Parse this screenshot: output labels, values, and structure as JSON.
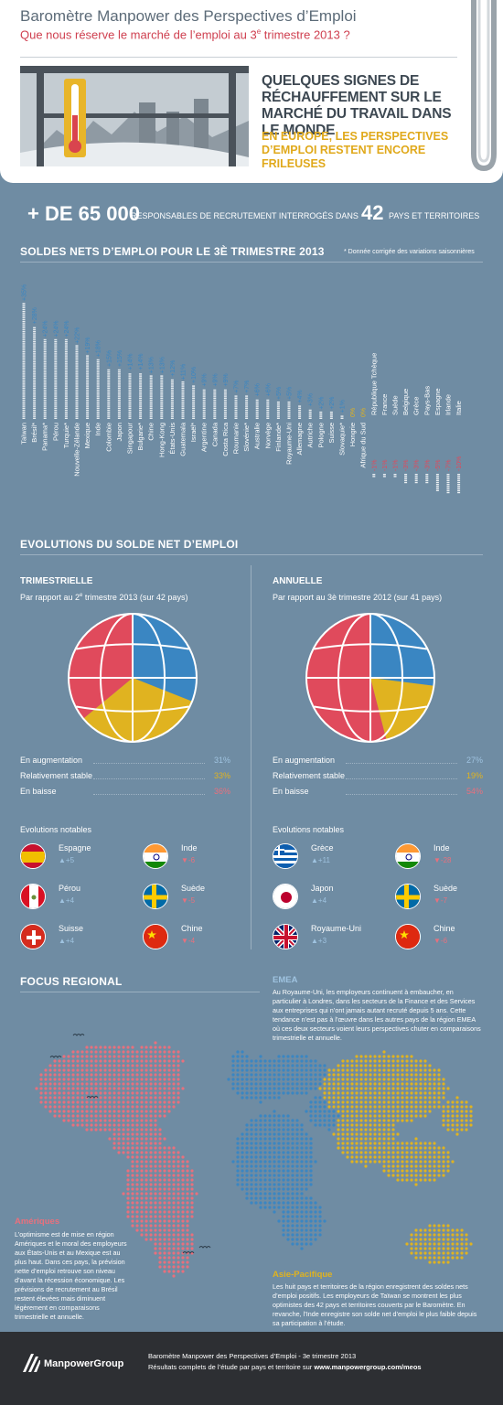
{
  "header": {
    "title": "Baromètre Manpower des Perspectives d’Emploi",
    "subtitle_pre": "Que nous réserve le marché de l’emploi au 3",
    "subtitle_sup": "e",
    "subtitle_post": " trimestre 2013 ?",
    "headline": "QUELQUES SIGNES DE RÉCHAUFFEMENT SUR LE MARCHÉ DU TRAVAIL DANS LE MONDE",
    "subhead": "EN EUROPE, LES PERSPECTIVES D’EMPLOI RESTENT ENCORE FRILEUSES"
  },
  "stats": {
    "big1": "+ DE 65 000",
    "text1": "RESPONSABLES DE RECRUTEMENT INTERROGÉS DANS",
    "big2": "42",
    "text2": "PAYS ET TERRITOIRES"
  },
  "chart_section": {
    "title": "SOLDES NETS D’EMPLOI POUR LE 3È TRIMESTRE 2013",
    "note": "* Donnée corrigée des variations saisonnières"
  },
  "chart_data": {
    "type": "bar",
    "categories": [
      "Taïwan",
      "Brésil*",
      "Panama*",
      "Pérou",
      "Turquie*",
      "Nouvelle-Zélande",
      "Mexique",
      "Inde",
      "Colombie",
      "Japon",
      "Singapour",
      "Bulgarie*",
      "Chine",
      "Hong-Kong",
      "États-Unis",
      "Guatemala",
      "Israël*",
      "Argentine",
      "Canada",
      "Costa Rica",
      "Roumanie",
      "Slovénie*",
      "Australie",
      "Norvège",
      "Finlande*",
      "Royaume-Uni",
      "Allemagne",
      "Autriche",
      "Pologne",
      "Suisse",
      "Slovaquie*",
      "Hongrie",
      "Afrique du Sud",
      "République Tchèque",
      "France",
      "Suède",
      "Belgique",
      "Grèce",
      "Pays-Bas",
      "Espagne",
      "Irlande",
      "Italie"
    ],
    "values": [
      35,
      28,
      24,
      24,
      24,
      22,
      19,
      18,
      15,
      15,
      14,
      14,
      13,
      13,
      12,
      11,
      10,
      9,
      9,
      9,
      7,
      7,
      6,
      6,
      5,
      5,
      4,
      3,
      2,
      2,
      1,
      0,
      0,
      -1,
      -1,
      -1,
      -3,
      -3,
      -3,
      -5,
      -7,
      -10
    ],
    "labels": [
      "+35%",
      "+28%",
      "+24%",
      "+24%",
      "+24%",
      "+22%",
      "+19%",
      "+18%",
      "+15%",
      "+15%",
      "+14%",
      "+14%",
      "+13%",
      "+13%",
      "+12%",
      "+11%",
      "+10%",
      "+9%",
      "+9%",
      "+9%",
      "+7%",
      "+7%",
      "+6%",
      "+6%",
      "+5%",
      "+5%",
      "+4%",
      "+3%",
      "+2%",
      "+2%",
      "+1%",
      "0%",
      "0%",
      "-1%",
      "-1%",
      "-1%",
      "-3%",
      "-3%",
      "-3%",
      "-5%",
      "-7%",
      "-10%"
    ],
    "colors": {
      "positive": "#3a86c2",
      "zero": "#e0b320",
      "negative": "#e04a5c"
    }
  },
  "evolutions": {
    "title": "EVOLUTIONS DU SOLDE NET D’EMPLOI",
    "legend_labels": [
      "En augmentation",
      "Relativement stable",
      "En baisse"
    ],
    "notable_title": "Evolutions notables",
    "quarterly": {
      "title": "TRIMESTRIELLE",
      "sub_pre": "Par rapport au 2",
      "sub_sup": "e",
      "sub_post": " trimestre 2013 (sur 42 pays)",
      "pie": {
        "up": 31,
        "stable": 33,
        "down": 36
      },
      "pct": [
        "31%",
        "33%",
        "36%"
      ],
      "notables": [
        {
          "name": "Espagne",
          "value": "▲+5",
          "dir": "up",
          "flag": "spain-flag-icon"
        },
        {
          "name": "Inde",
          "value": "▼-6",
          "dir": "down",
          "flag": "india-flag-icon"
        },
        {
          "name": "Pérou",
          "value": "▲+4",
          "dir": "up",
          "flag": "peru-flag-icon"
        },
        {
          "name": "Suède",
          "value": "▼-5",
          "dir": "down",
          "flag": "sweden-flag-icon"
        },
        {
          "name": "Suisse",
          "value": "▲+4",
          "dir": "up",
          "flag": "switzerland-flag-icon"
        },
        {
          "name": "Chine",
          "value": "▼-4",
          "dir": "down",
          "flag": "china-flag-icon"
        }
      ]
    },
    "annual": {
      "title": "ANNUELLE",
      "sub": "Par rapport au 3è trimestre 2012 (sur 41 pays)",
      "pie": {
        "up": 27,
        "stable": 19,
        "down": 54
      },
      "pct": [
        "27%",
        "19%",
        "54%"
      ],
      "notables": [
        {
          "name": "Grèce",
          "value": "▲+11",
          "dir": "up",
          "flag": "greece-flag-icon"
        },
        {
          "name": "Inde",
          "value": "▼-28",
          "dir": "down",
          "flag": "india-flag-icon"
        },
        {
          "name": "Japon",
          "value": "▲+4",
          "dir": "up",
          "flag": "japan-flag-icon"
        },
        {
          "name": "Suède",
          "value": "▼-7",
          "dir": "down",
          "flag": "sweden-flag-icon"
        },
        {
          "name": "Royaume-Uni",
          "value": "▲+3",
          "dir": "up",
          "flag": "uk-flag-icon"
        },
        {
          "name": "Chine",
          "value": "▼-6",
          "dir": "down",
          "flag": "china-flag-icon"
        }
      ]
    },
    "colors": {
      "up": "#3a86c2",
      "stable": "#e0b320",
      "down": "#e04a5c",
      "up_text": "#9fc3e0",
      "stable_text": "#e0b320",
      "down_text": "#e8707d"
    }
  },
  "regional": {
    "title": "FOCUS REGIONAL",
    "emea_title": "EMEA",
    "emea_text": "Au Royaume-Uni, les employeurs continuent à embaucher, en particulier à Londres, dans les secteurs de la Finance et des Services aux entreprises qui n’ont jamais autant recruté depuis 5 ans. Cette tendance n’est pas à l’œuvre dans les autres pays de la région EMEA où ces deux secteurs voient leurs perspectives chuter en comparaisons trimestrielle et annuelle.",
    "americas_title": "Amériques",
    "americas_text": "L’optimisme est de mise en région Amériques et le moral des employeurs aux États-Unis et au Mexique est au plus haut. Dans ces pays, la prévision nette d’emploi retrouve son niveau d’avant la récession économique. Les prévisions de recrutement au Brésil restent élevées mais diminuent légèrement en comparaisons trimestrielle et annuelle.",
    "apac_title": "Asie-Pacifique",
    "apac_text": "Les huit pays et territoires de la région enregistrent des soldes nets d’emploi positifs. Les employeurs de Taïwan se montrent les plus optimistes des 42 pays et territoires couverts par le Baromètre. En revanche, l’Inde enregistre son solde net d’emploi le plus faible depuis sa participation à l’étude."
  },
  "footer": {
    "brand": "ManpowerGroup",
    "line1": "Baromètre Manpower des Perspectives d’Emploi - 3e trimestre 2013",
    "line2_pre": "Résultats complets de l’étude par pays et territoire sur ",
    "line2_link": "www.manpowergroup.com/meos"
  }
}
